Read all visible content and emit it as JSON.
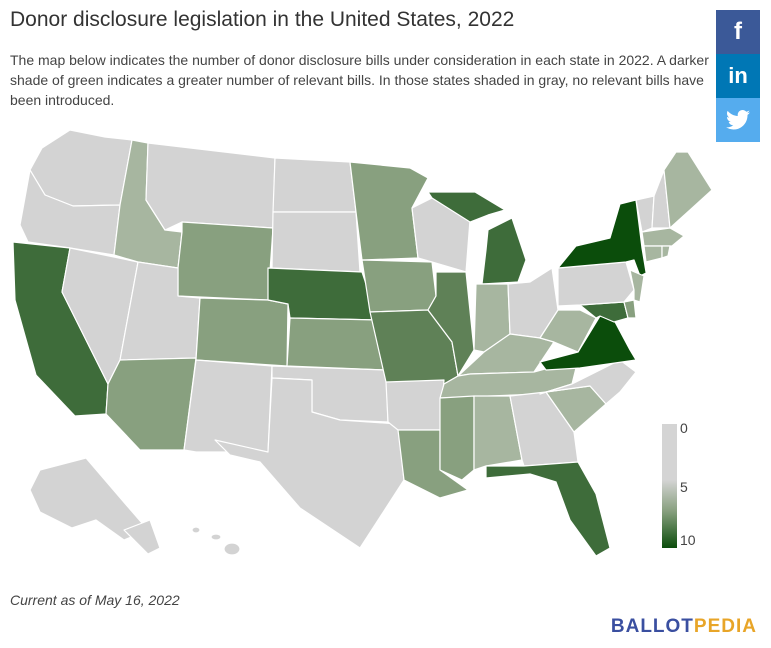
{
  "title": "Donor disclosure legislation in the United States, 2022",
  "description": "The map below indicates the number of donor disclosure bills under consideration in each state in 2022. A darker shade of green indicates a greater number of relevant bills. In those states shaded in gray, no relevant bills have been introduced.",
  "social": {
    "facebook_glyph": "f",
    "linkedin_glyph": "in",
    "icons": [
      "facebook-icon",
      "linkedin-icon",
      "twitter-icon"
    ]
  },
  "legend": {
    "min_label": "0",
    "mid_label": "5",
    "max_label": "10",
    "color_low": "#d4d4d4",
    "color_high": "#0b4d0b"
  },
  "colors": {
    "gray": "#d3d3d3",
    "light_green": "#a7b6a0",
    "mid_green": "#88a07f",
    "medium_dark_green": "#5f8157",
    "dark_green": "#3e6c3a",
    "darkest_green": "#0b4d0b"
  },
  "footnote": "Current as of May 16, 2022",
  "brand": {
    "part1": "BALLOT",
    "part2": "PEDIA"
  }
}
